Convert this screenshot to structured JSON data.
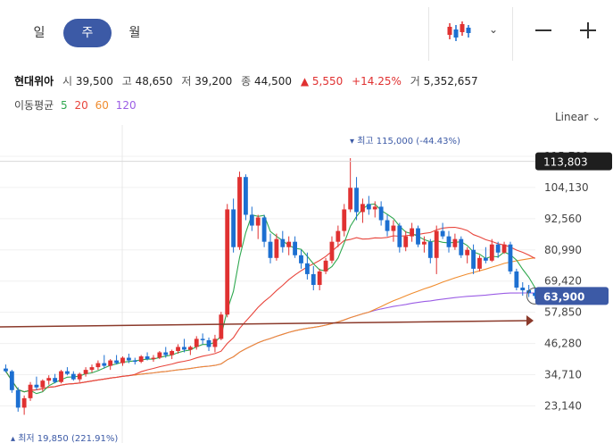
{
  "toolbar": {
    "tabs": [
      {
        "label": "일",
        "active": false
      },
      {
        "label": "주",
        "active": true
      },
      {
        "label": "월",
        "active": false
      }
    ],
    "chart_type_icon": "candlestick-icon",
    "dropdown_icon": "chevron-down-icon",
    "zoom_out_icon": "minus-icon",
    "zoom_in_icon": "plus-icon"
  },
  "quote": {
    "name": "현대위아",
    "open_label": "시",
    "open": "39,500",
    "high_label": "고",
    "high": "48,650",
    "low_label": "저",
    "low": "39,200",
    "close_label": "종",
    "close": "44,500",
    "change_arrow": "▲",
    "change": "5,550",
    "change_pct": "+14.25%",
    "volume_label": "거",
    "volume": "5,352,657"
  },
  "moving_average": {
    "label": "이동평균",
    "periods": [
      {
        "value": "5",
        "color": "#2fa84f"
      },
      {
        "value": "20",
        "color": "#e8453c"
      },
      {
        "value": "60",
        "color": "#f08c2e"
      },
      {
        "value": "120",
        "color": "#9b5de5"
      }
    ]
  },
  "scale_mode": "Linear",
  "chart_data": {
    "type": "candlestick",
    "y_ticks": [
      "115,700",
      "104,130",
      "92,560",
      "80,990",
      "69,420",
      "57,850",
      "46,280",
      "34,710",
      "23,140"
    ],
    "ylim": [
      18000,
      118000
    ],
    "crosshair_price": "113,803",
    "current_price": "63,900",
    "max_annotation": {
      "text": "최고 115,000 (-44.43%)",
      "value": 115000
    },
    "min_annotation": {
      "text": "최저 19,850 (221.91%)",
      "value": 19850
    },
    "up_color": "#e03131",
    "down_color": "#1c6fd1",
    "trendline_color": "#8b3a2b",
    "candles": [
      [
        37000,
        38500,
        35500,
        36000
      ],
      [
        36000,
        36500,
        28000,
        29000
      ],
      [
        29000,
        30000,
        21000,
        22500
      ],
      [
        22500,
        27000,
        19850,
        26000
      ],
      [
        26000,
        32000,
        25000,
        31000
      ],
      [
        31000,
        34000,
        29000,
        30000
      ],
      [
        30000,
        33000,
        28500,
        32500
      ],
      [
        32500,
        34500,
        31000,
        33500
      ],
      [
        33500,
        35000,
        31500,
        32000
      ],
      [
        32000,
        36500,
        31500,
        36000
      ],
      [
        36000,
        37500,
        34500,
        35000
      ],
      [
        35000,
        36000,
        32500,
        33000
      ],
      [
        33000,
        35500,
        32000,
        35000
      ],
      [
        35000,
        37500,
        34000,
        36500
      ],
      [
        36500,
        38500,
        35500,
        37500
      ],
      [
        37500,
        40000,
        36500,
        39000
      ],
      [
        39000,
        42000,
        37000,
        38000
      ],
      [
        38000,
        40500,
        36500,
        40000
      ],
      [
        40000,
        42000,
        38500,
        39000
      ],
      [
        39000,
        41500,
        38000,
        41000
      ],
      [
        41000,
        42500,
        39000,
        40000
      ],
      [
        40000,
        41000,
        38500,
        39500
      ],
      [
        39500,
        42000,
        39000,
        41500
      ],
      [
        41500,
        43000,
        40000,
        40500
      ],
      [
        40500,
        42000,
        39500,
        41000
      ],
      [
        41000,
        43500,
        40500,
        43000
      ],
      [
        43000,
        45000,
        41000,
        42000
      ],
      [
        42000,
        44000,
        40500,
        43500
      ],
      [
        43500,
        46000,
        42500,
        45000
      ],
      [
        45000,
        48000,
        43000,
        44000
      ],
      [
        44000,
        45500,
        42000,
        45000
      ],
      [
        45000,
        49000,
        44000,
        48000
      ],
      [
        48000,
        50000,
        46000,
        47500
      ],
      [
        47500,
        48500,
        43500,
        45000
      ],
      [
        45000,
        49500,
        43000,
        48000
      ],
      [
        48000,
        58000,
        47500,
        57000
      ],
      [
        57000,
        98000,
        56000,
        96000
      ],
      [
        96000,
        100000,
        80000,
        82000
      ],
      [
        82000,
        110000,
        81000,
        108000
      ],
      [
        108000,
        109000,
        92000,
        94000
      ],
      [
        94000,
        97000,
        88000,
        90000
      ],
      [
        90000,
        94000,
        85000,
        93000
      ],
      [
        93000,
        94000,
        82000,
        84000
      ],
      [
        84000,
        87000,
        76000,
        78000
      ],
      [
        78000,
        87000,
        77000,
        85000
      ],
      [
        85000,
        88000,
        80000,
        82000
      ],
      [
        82000,
        86000,
        79000,
        84000
      ],
      [
        84000,
        86000,
        78000,
        79000
      ],
      [
        79000,
        81000,
        74000,
        76000
      ],
      [
        76000,
        80000,
        70000,
        72000
      ],
      [
        72000,
        75000,
        66000,
        68000
      ],
      [
        68000,
        74000,
        66000,
        73000
      ],
      [
        73000,
        78000,
        72000,
        77000
      ],
      [
        77000,
        86000,
        76000,
        84000
      ],
      [
        84000,
        90000,
        82000,
        88000
      ],
      [
        88000,
        98000,
        86000,
        96000
      ],
      [
        96000,
        115000,
        95000,
        104000
      ],
      [
        104000,
        108000,
        92000,
        95000
      ],
      [
        95000,
        100000,
        91000,
        98000
      ],
      [
        98000,
        101000,
        94000,
        96000
      ],
      [
        96000,
        99000,
        93000,
        97000
      ],
      [
        97000,
        99000,
        90000,
        92000
      ],
      [
        92000,
        94000,
        86000,
        88000
      ],
      [
        88000,
        92000,
        84000,
        90000
      ],
      [
        90000,
        91000,
        80000,
        82000
      ],
      [
        82000,
        88000,
        80500,
        86000
      ],
      [
        86000,
        91000,
        84000,
        89000
      ],
      [
        89000,
        90000,
        82000,
        83000
      ],
      [
        83000,
        86000,
        80000,
        84000
      ],
      [
        84000,
        85000,
        76000,
        78000
      ],
      [
        78000,
        90000,
        72000,
        88000
      ],
      [
        88000,
        91000,
        85000,
        86000
      ],
      [
        86000,
        88000,
        80000,
        82000
      ],
      [
        82000,
        87000,
        81000,
        85000
      ],
      [
        85000,
        86000,
        78000,
        79000
      ],
      [
        79000,
        82000,
        76000,
        81000
      ],
      [
        81000,
        83000,
        72000,
        74000
      ],
      [
        74000,
        79000,
        73000,
        78000
      ],
      [
        78000,
        82000,
        76000,
        77000
      ],
      [
        77000,
        85000,
        76500,
        83000
      ],
      [
        83000,
        84000,
        78000,
        80000
      ],
      [
        80000,
        84000,
        79500,
        83000
      ],
      [
        83000,
        84000,
        72000,
        73000
      ],
      [
        73000,
        74000,
        66000,
        67000
      ],
      [
        67000,
        69000,
        64000,
        66000
      ],
      [
        66000,
        68000,
        63500,
        65000
      ],
      [
        65000,
        67000,
        62800,
        63900
      ]
    ]
  }
}
